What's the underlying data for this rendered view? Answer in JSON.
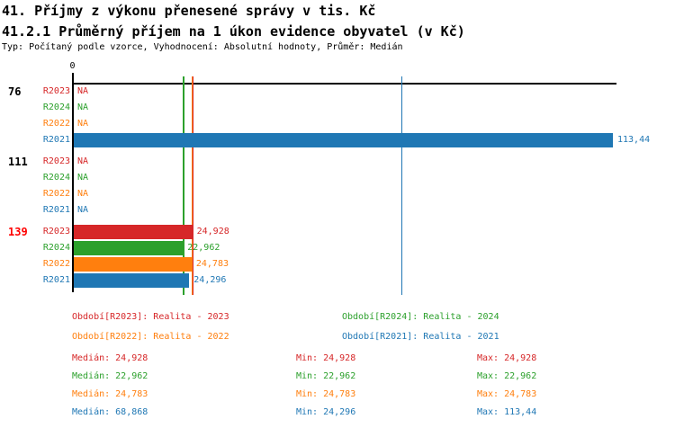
{
  "header": {
    "title_line1": "41. Příjmy z výkonu přenesené správy v tis. Kč",
    "title_line2": "41.2.1 Průměrný příjem na 1 úkon evidence obyvatel (v Kč)",
    "subtitle": "Typ: Počítaný podle vzorce, Vyhodnocení: Absolutní hodnoty, Průměr: Medián"
  },
  "colors": {
    "R2023": "#d62728",
    "R2024": "#2ca02c",
    "R2022": "#ff7f0e",
    "R2021": "#1f77b4",
    "highlight_group": "#ff0000",
    "axis": "#000000",
    "background": "#ffffff"
  },
  "chart_data": {
    "type": "bar",
    "orientation": "horizontal",
    "origin_tick_label": "0",
    "na_label": "NA",
    "xmax_value": 113.44,
    "series_order": [
      "R2023",
      "R2024",
      "R2022",
      "R2021"
    ],
    "groups": [
      {
        "label": "76",
        "highlight": false,
        "bars": [
          {
            "series": "R2023",
            "value": null,
            "display": "NA"
          },
          {
            "series": "R2024",
            "value": null,
            "display": "NA"
          },
          {
            "series": "R2022",
            "value": null,
            "display": "NA"
          },
          {
            "series": "R2021",
            "value": 113.44,
            "display": "113,44"
          }
        ]
      },
      {
        "label": "111",
        "highlight": false,
        "bars": [
          {
            "series": "R2023",
            "value": null,
            "display": "NA"
          },
          {
            "series": "R2024",
            "value": null,
            "display": "NA"
          },
          {
            "series": "R2022",
            "value": null,
            "display": "NA"
          },
          {
            "series": "R2021",
            "value": null,
            "display": "NA"
          }
        ]
      },
      {
        "label": "139",
        "highlight": true,
        "bars": [
          {
            "series": "R2023",
            "value": 24.928,
            "display": "24,928"
          },
          {
            "series": "R2024",
            "value": 22.962,
            "display": "22,962"
          },
          {
            "series": "R2022",
            "value": 24.783,
            "display": "24,783"
          },
          {
            "series": "R2021",
            "value": 24.296,
            "display": "24,296"
          }
        ]
      }
    ],
    "median_lines": [
      {
        "series": "R2023",
        "value": 24.928
      },
      {
        "series": "R2024",
        "value": 22.962
      },
      {
        "series": "R2022",
        "value": 24.783
      },
      {
        "series": "R2021",
        "value": 68.868
      }
    ]
  },
  "legend": {
    "rows": [
      [
        {
          "series": "R2023",
          "label": "Období[R2023]: Realita - 2023"
        },
        {
          "series": "R2024",
          "label": "Období[R2024]: Realita - 2024"
        }
      ],
      [
        {
          "series": "R2022",
          "label": "Období[R2022]: Realita - 2022"
        },
        {
          "series": "R2021",
          "label": "Období[R2021]: Realita - 2021"
        }
      ]
    ]
  },
  "stats": {
    "labels": {
      "median": "Medián",
      "min": "Min",
      "max": "Max"
    },
    "rows": [
      {
        "series": "R2023",
        "median": "24,928",
        "min": "24,928",
        "max": "24,928"
      },
      {
        "series": "R2024",
        "median": "22,962",
        "min": "22,962",
        "max": "22,962"
      },
      {
        "series": "R2022",
        "median": "24,783",
        "min": "24,783",
        "max": "24,783"
      },
      {
        "series": "R2021",
        "median": "68,868",
        "min": "24,296",
        "max": "113,44"
      }
    ]
  }
}
